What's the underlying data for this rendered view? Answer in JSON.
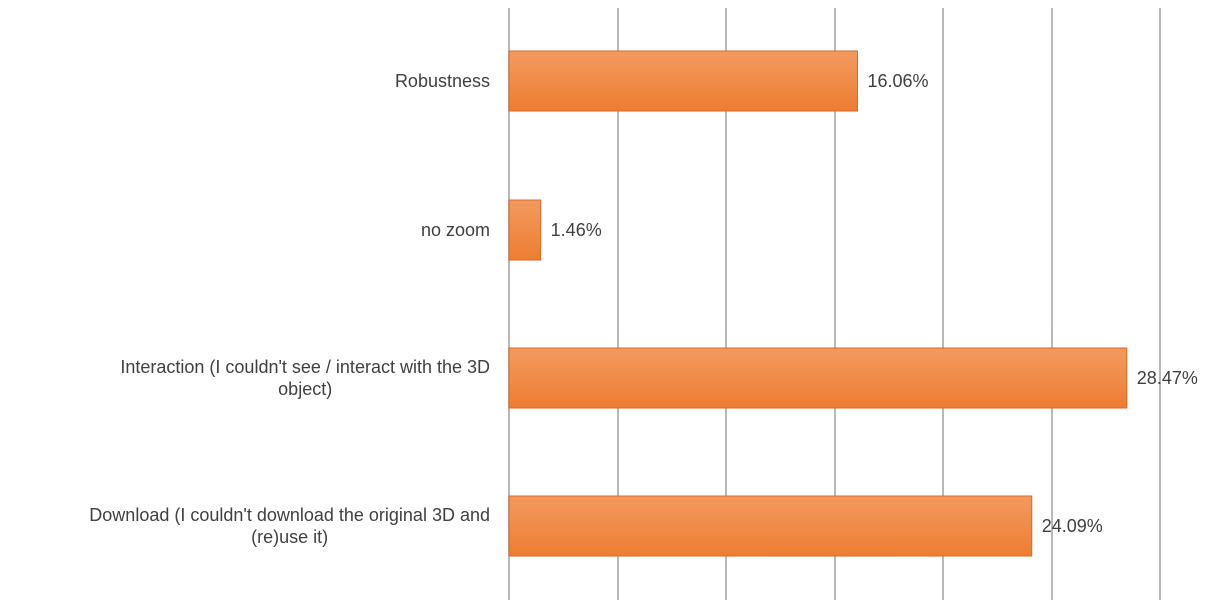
{
  "chart_data": {
    "type": "bar",
    "orientation": "horizontal",
    "categories": [
      "Robustness",
      "no zoom",
      "Interaction (I couldn't see / interact with the 3D object)",
      "Download (I couldn't download the original 3D and (re)use it)"
    ],
    "category_lines": [
      [
        "Robustness"
      ],
      [
        "no zoom"
      ],
      [
        "Interaction (I couldn't see / interact with the 3D",
        "object)"
      ],
      [
        "Download (I couldn't download the original 3D and",
        "(re)use it)"
      ]
    ],
    "values": [
      16.06,
      1.46,
      28.47,
      24.09
    ],
    "data_labels": [
      "16.06%",
      "1.46%",
      "28.47%",
      "24.09%"
    ],
    "title": "",
    "xlabel": "",
    "ylabel": "",
    "xlim": [
      0,
      30
    ],
    "x_gridline_step": 5,
    "grid": true,
    "legend": "none",
    "bar_color": "#ED7D31",
    "bar_gradient_light": "#F39A5F",
    "bar_border_color": "#D9692A",
    "gridline_color": "#B8B8B8",
    "text_color": "#404040"
  }
}
